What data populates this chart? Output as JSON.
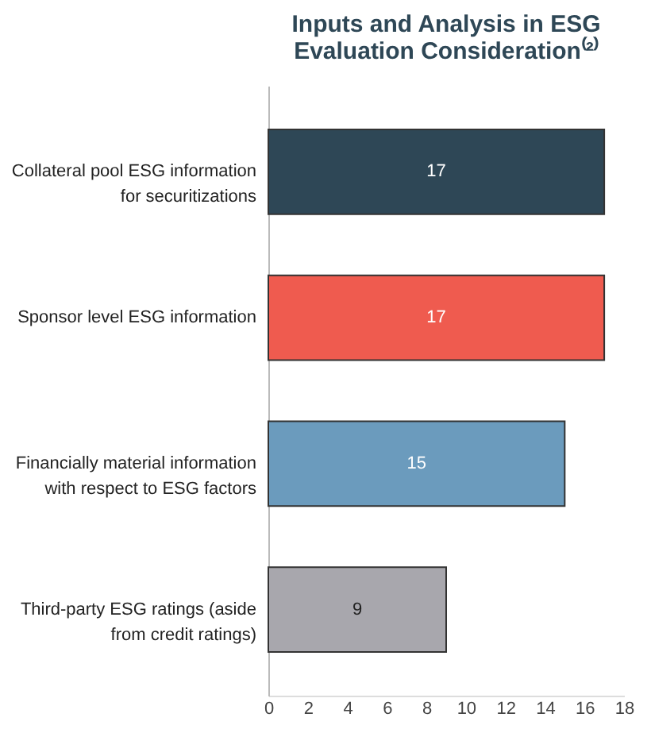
{
  "chart_data": {
    "type": "bar",
    "orientation": "horizontal",
    "title": "Inputs and Analysis in ESG Evaluation Consideration⁽²⁾",
    "categories": [
      "Collateral pool ESG information for securitizations",
      "Sponsor level ESG information",
      "Financially material information with respect to ESG factors",
      "Third-party ESG ratings (aside from credit ratings)"
    ],
    "values": [
      17,
      17,
      15,
      9
    ],
    "colors": [
      "#2e4756",
      "#ef5b4f",
      "#6b9bbd",
      "#a8a7ad"
    ],
    "xlim": [
      0,
      18
    ],
    "xticks": [
      0,
      2,
      4,
      6,
      8,
      10,
      12,
      14,
      16,
      18
    ],
    "data_labels": true,
    "grid": false
  }
}
